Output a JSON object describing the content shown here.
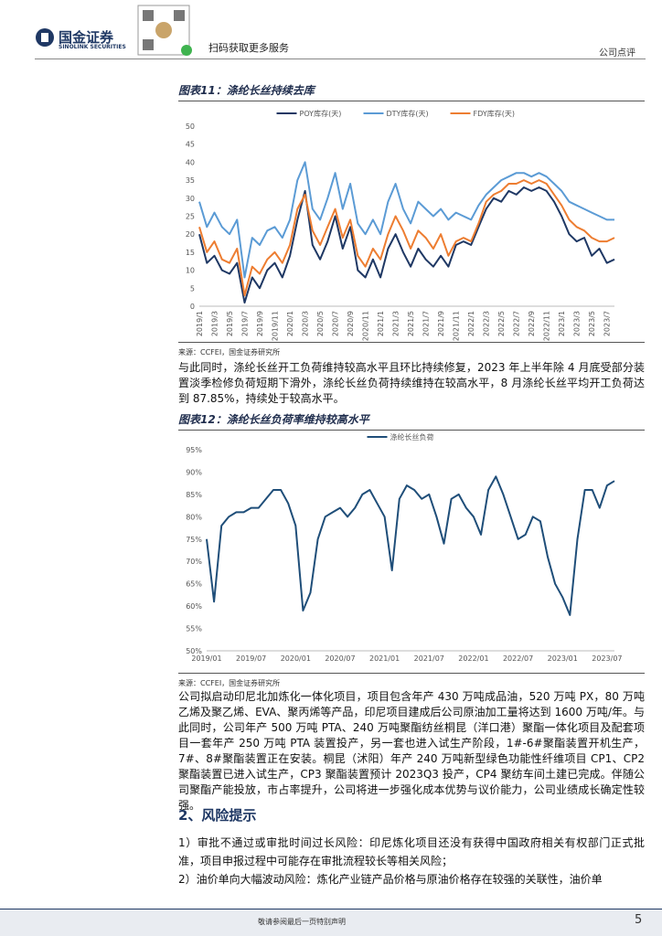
{
  "header": {
    "logo_text": "国金证券",
    "logo_sub": "SINOLINK SECURITIES",
    "qr_text": "扫码获取更多服务",
    "category": "公司点评"
  },
  "chart_data": [
    {
      "type": "line",
      "title": "图表11：涤纶长丝持续去库",
      "source": "来源：CCFEI，国金证券研究所",
      "legend": "top",
      "categories": [
        "2019/1",
        null,
        "2019/3",
        null,
        "2019/5",
        null,
        "2019/7",
        null,
        "2019/9",
        null,
        "2019/11",
        null,
        "2020/1",
        null,
        "2020/3",
        null,
        "2020/5",
        null,
        "2020/7",
        null,
        "2020/9",
        null,
        "2020/11",
        null,
        "2021/1",
        null,
        "2021/3",
        null,
        "2021/5",
        null,
        "2021/7",
        null,
        "2021/9",
        null,
        "2021/11",
        null,
        "2022/1",
        null,
        "2022/3",
        null,
        "2022/5",
        null,
        "2022/7",
        null,
        "2022/9",
        null,
        "2022/11",
        null,
        "2023/1",
        null,
        "2023/3",
        null,
        "2023/5",
        null,
        "2023/7",
        null
      ],
      "series": [
        {
          "name": "POY库存(天)",
          "color": "#1f3864",
          "values": [
            20,
            12,
            14,
            10,
            9,
            12,
            1,
            8,
            5,
            10,
            12,
            8,
            14,
            24,
            32,
            17,
            13,
            18,
            25,
            16,
            22,
            10,
            8,
            13,
            8,
            16,
            20,
            15,
            11,
            16,
            13,
            11,
            14,
            11,
            17,
            18,
            17,
            22,
            27,
            30,
            29,
            32,
            31,
            33,
            32,
            33,
            32,
            29,
            25,
            20,
            18,
            19,
            14,
            16,
            12,
            13
          ]
        },
        {
          "name": "DTY库存(天)",
          "color": "#5b9bd5",
          "values": [
            29,
            22,
            26,
            22,
            20,
            24,
            8,
            19,
            17,
            21,
            22,
            19,
            24,
            35,
            40,
            27,
            24,
            30,
            37,
            27,
            34,
            23,
            20,
            24,
            20,
            29,
            34,
            27,
            23,
            29,
            27,
            25,
            27,
            24,
            26,
            25,
            24,
            28,
            31,
            33,
            35,
            36,
            37,
            37,
            36,
            37,
            36,
            34,
            32,
            29,
            28,
            27,
            26,
            25,
            24,
            24
          ]
        },
        {
          "name": "FDY库存(天)",
          "color": "#ed7d31",
          "values": [
            22,
            15,
            18,
            13,
            12,
            16,
            3,
            11,
            9,
            13,
            15,
            12,
            17,
            27,
            31,
            21,
            17,
            22,
            27,
            19,
            24,
            14,
            11,
            16,
            13,
            20,
            25,
            21,
            16,
            21,
            19,
            16,
            20,
            14,
            18,
            19,
            18,
            23,
            29,
            31,
            32,
            34,
            34,
            35,
            34,
            35,
            34,
            31,
            28,
            24,
            22,
            21,
            19,
            18,
            18,
            19
          ]
        }
      ],
      "ylim": [
        0,
        50
      ],
      "yticks": [
        0,
        5,
        10,
        15,
        20,
        25,
        30,
        35,
        40,
        45,
        50
      ],
      "grid": false
    },
    {
      "type": "line",
      "title": "图表12：涤纶长丝负荷率维持较高水平",
      "source": "来源：CCFEI，国金证券研究所",
      "legend": "top",
      "categories": [
        "2019/01",
        null,
        null,
        null,
        null,
        null,
        "2019/07",
        null,
        null,
        null,
        null,
        null,
        "2020/01",
        null,
        null,
        null,
        null,
        null,
        "2020/07",
        null,
        null,
        null,
        null,
        null,
        "2021/01",
        null,
        null,
        null,
        null,
        null,
        "2021/07",
        null,
        null,
        null,
        null,
        null,
        "2022/01",
        null,
        null,
        null,
        null,
        null,
        "2022/07",
        null,
        null,
        null,
        null,
        null,
        "2023/01",
        null,
        null,
        null,
        null,
        null,
        "2023/07",
        null
      ],
      "series": [
        {
          "name": "涤纶长丝负荷",
          "color": "#1f4e79",
          "values": [
            75,
            61,
            78,
            80,
            81,
            81,
            82,
            82,
            84,
            86,
            86,
            83,
            78,
            59,
            63,
            75,
            80,
            81,
            82,
            80,
            82,
            85,
            86,
            83,
            80,
            68,
            84,
            87,
            86,
            84,
            85,
            80,
            74,
            84,
            85,
            82,
            80,
            76,
            86,
            89,
            85,
            80,
            75,
            76,
            80,
            79,
            71,
            65,
            62,
            58,
            75,
            86,
            86,
            82,
            87,
            88
          ]
        }
      ],
      "ylim": [
        50,
        95
      ],
      "yticks": [
        {
          "value": 50,
          "label": "50%"
        },
        {
          "value": 55,
          "label": "55%"
        },
        {
          "value": 60,
          "label": "60%"
        },
        {
          "value": 65,
          "label": "65%"
        },
        {
          "value": 70,
          "label": "70%"
        },
        {
          "value": 75,
          "label": "75%"
        },
        {
          "value": 80,
          "label": "80%"
        },
        {
          "value": 85,
          "label": "85%"
        },
        {
          "value": 90,
          "label": "90%"
        },
        {
          "value": 95,
          "label": "95%"
        }
      ],
      "grid": false
    }
  ],
  "paragraphs": [
    "与此同时，涤纶长丝开工负荷维持较高水平且环比持续修复，2023 年上半年除 4 月底受部分装置淡季检修负荷短期下滑外，涤纶长丝负荷持续维持在较高水平，8 月涤纶长丝平均开工负荷达到 87.85%，持续处于较高水平。",
    "公司拟启动印尼北加炼化一体化项目，项目包含年产 430 万吨成品油，520 万吨 PX，80 万吨乙烯及聚乙烯、EVA、聚丙烯等产品，印尼项目建成后公司原油加工量将达到 1600 万吨/年。与此同时，公司年产 500 万吨 PTA、240 万吨聚酯纺丝桐昆（洋口港）聚酯一体化项目及配套项目一套年产 250 万吨 PTA 装置投产，另一套也进入试生产阶段，1#-6#聚酯装置开机生产，7#、8#聚酯装置正在安装。桐昆（沭阳）年产 240 万吨新型绿色功能性纤维项目 CP1、CP2 聚酯装置已进入试生产，CP3 聚酯装置预计 2023Q3 投产，CP4 聚纺车间土建已完成。伴随公司聚酯产能投放，市占率提升，公司将进一步强化成本优势与议价能力，公司业绩成长确定性较强。"
  ],
  "section_title": "2、风险提示",
  "risks": [
    "1）审批不通过或审批时间过长风险：印尼炼化项目还没有获得中国政府相关有权部门正式批准，项目申报过程中可能存在审批流程较长等相关风险；",
    "2）油价单向大幅波动风险：炼化产业链产品价格与原油价格存在较强的关联性，油价单"
  ],
  "footer": {
    "note": "敬请参阅最后一页特别声明",
    "page": 5
  }
}
